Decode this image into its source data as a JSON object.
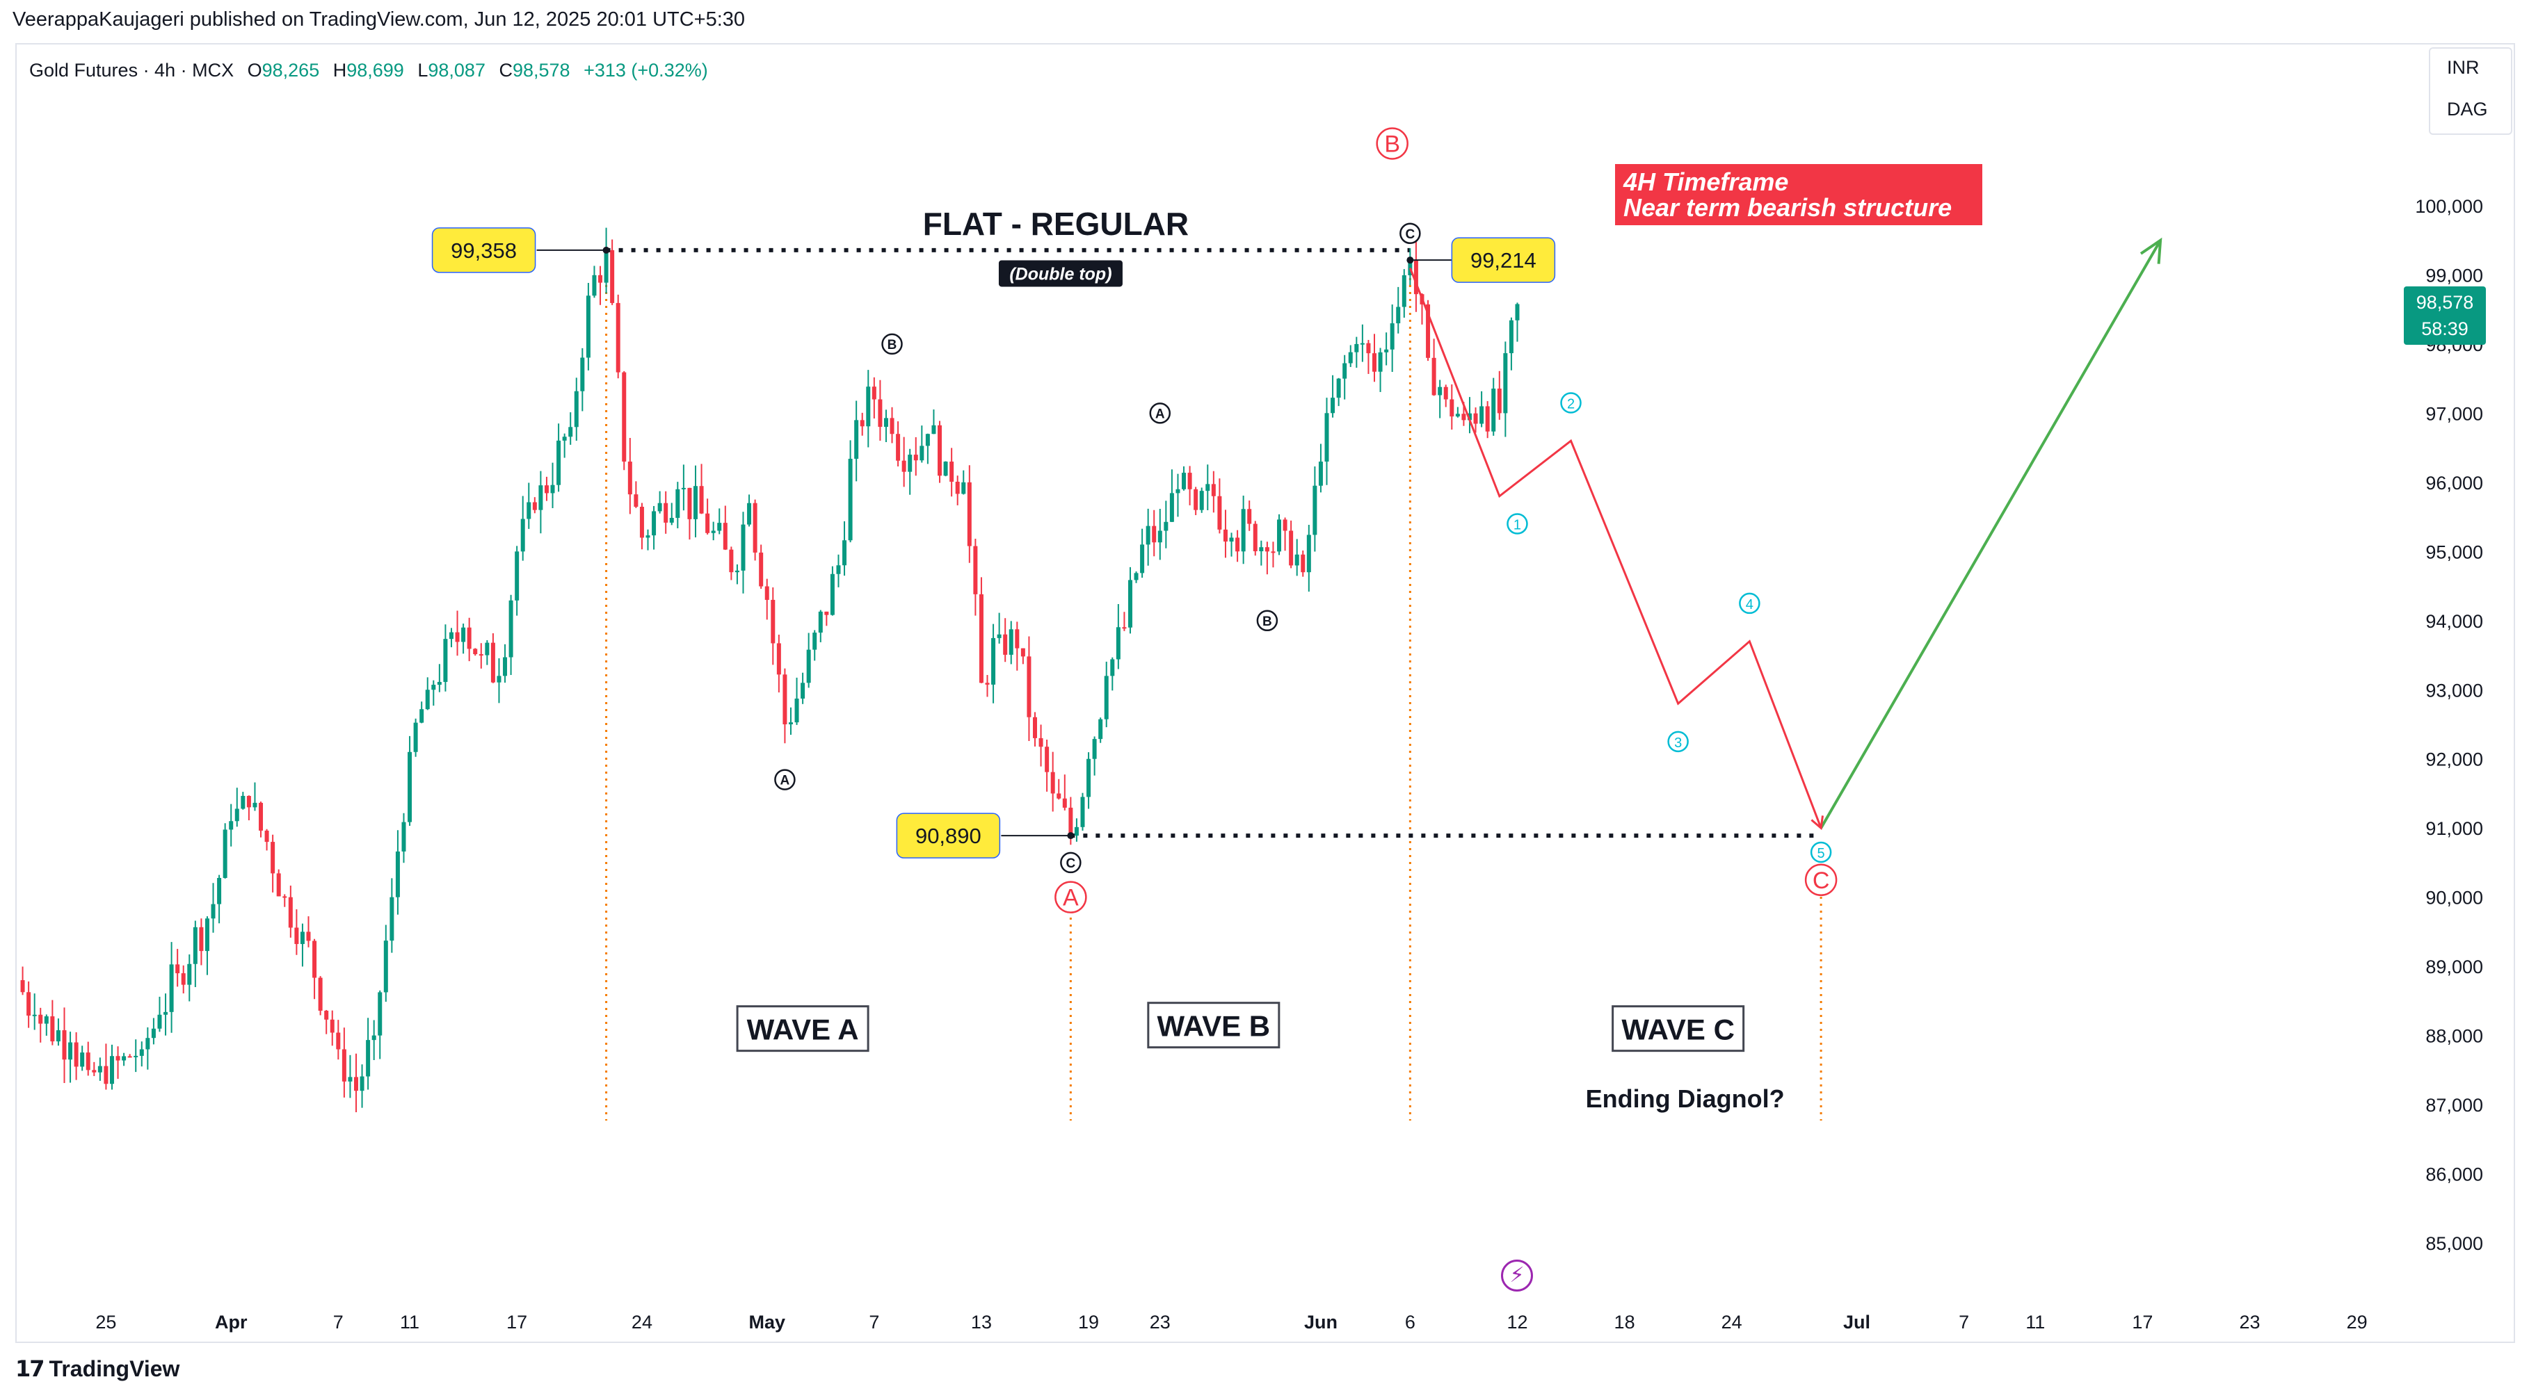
{
  "publisher": "VeerappaKaujageri published on TradingView.com, Jun 12, 2025 20:01 UTC+5:30",
  "legend": {
    "symbol": "Gold Futures · 4h · MCX",
    "open_label": "O",
    "open": "98,265",
    "high_label": "H",
    "high": "98,699",
    "low_label": "L",
    "low": "98,087",
    "close_label": "C",
    "close": "98,578",
    "change": "+313 (+0.32%)"
  },
  "currency_menu": [
    "INR",
    "DAG"
  ],
  "last_price": {
    "price": "98,578",
    "countdown": "58:39"
  },
  "footer_brand": "TradingView",
  "lightning_icon": "lightning-icon",
  "colors": {
    "up": "#089981",
    "down": "#f23645",
    "projection_down": "#f23645",
    "projection_up": "#4caf50",
    "wave_red": "#f23645",
    "sub_wave": "#00bcd4",
    "label_yellow": "#ffeb3b",
    "vline": "#f57c00"
  },
  "chart_data": {
    "type": "candlestick",
    "interval": "4h",
    "y_axis": {
      "min": 84500,
      "max": 101700,
      "ticks": [
        85000,
        86000,
        87000,
        88000,
        89000,
        90000,
        91000,
        92000,
        93000,
        94000,
        95000,
        96000,
        97000,
        98000,
        99000,
        100000
      ],
      "tick_labels": [
        "85,000",
        "86,000",
        "87,000",
        "88,000",
        "89,000",
        "90,000",
        "91,000",
        "92,000",
        "93,000",
        "94,000",
        "95,000",
        "96,000",
        "97,000",
        "98,000",
        "99,000",
        "100,000"
      ]
    },
    "x_axis": {
      "start_date": "2025-03-20",
      "end_date": "2025-07-31",
      "ticks": [
        {
          "date": "2025-03-25",
          "label": "25",
          "bold": false
        },
        {
          "date": "2025-04-01",
          "label": "Apr",
          "bold": true
        },
        {
          "date": "2025-04-07",
          "label": "7",
          "bold": false
        },
        {
          "date": "2025-04-11",
          "label": "11",
          "bold": false
        },
        {
          "date": "2025-04-17",
          "label": "17",
          "bold": false
        },
        {
          "date": "2025-04-24",
          "label": "24",
          "bold": false
        },
        {
          "date": "2025-05-01",
          "label": "May",
          "bold": true
        },
        {
          "date": "2025-05-07",
          "label": "7",
          "bold": false
        },
        {
          "date": "2025-05-13",
          "label": "13",
          "bold": false
        },
        {
          "date": "2025-05-19",
          "label": "19",
          "bold": false
        },
        {
          "date": "2025-05-23",
          "label": "23",
          "bold": false
        },
        {
          "date": "2025-06-01",
          "label": "Jun",
          "bold": true
        },
        {
          "date": "2025-06-06",
          "label": "6",
          "bold": false
        },
        {
          "date": "2025-06-12",
          "label": "12",
          "bold": false
        },
        {
          "date": "2025-06-18",
          "label": "18",
          "bold": false
        },
        {
          "date": "2025-06-24",
          "label": "24",
          "bold": false
        },
        {
          "date": "2025-07-01",
          "label": "Jul",
          "bold": true
        },
        {
          "date": "2025-07-07",
          "label": "7",
          "bold": false
        },
        {
          "date": "2025-07-11",
          "label": "11",
          "bold": false
        },
        {
          "date": "2025-07-17",
          "label": "17",
          "bold": false
        },
        {
          "date": "2025-07-23",
          "label": "23",
          "bold": false
        },
        {
          "date": "2025-07-29",
          "label": "29",
          "bold": false
        }
      ]
    },
    "price_path": [
      [
        "2025-03-20",
        88800
      ],
      [
        "2025-03-21",
        88300
      ],
      [
        "2025-03-23",
        87900
      ],
      [
        "2025-03-24",
        87500
      ],
      [
        "2025-03-25",
        87300
      ],
      [
        "2025-03-26",
        87700
      ],
      [
        "2025-03-27",
        87800
      ],
      [
        "2025-03-28",
        88300
      ],
      [
        "2025-03-29",
        88900
      ],
      [
        "2025-03-31",
        89900
      ],
      [
        "2025-04-01",
        91100
      ],
      [
        "2025-04-02",
        91300
      ],
      [
        "2025-04-03",
        90800
      ],
      [
        "2025-04-04",
        90000
      ],
      [
        "2025-04-05",
        89500
      ],
      [
        "2025-04-07",
        87800
      ],
      [
        "2025-04-08",
        87200
      ],
      [
        "2025-04-09",
        88000
      ],
      [
        "2025-04-10",
        90000
      ],
      [
        "2025-04-11",
        92100
      ],
      [
        "2025-04-12",
        93000
      ],
      [
        "2025-04-14",
        93900
      ],
      [
        "2025-04-15",
        93500
      ],
      [
        "2025-04-16",
        93200
      ],
      [
        "2025-04-17",
        95000
      ],
      [
        "2025-04-18",
        95600
      ],
      [
        "2025-04-20",
        96800
      ],
      [
        "2025-04-21",
        98700
      ],
      [
        "2025-04-22",
        99358
      ],
      [
        "2025-04-23",
        96300
      ],
      [
        "2025-04-24",
        95200
      ],
      [
        "2025-04-25",
        95700
      ],
      [
        "2025-04-26",
        95900
      ],
      [
        "2025-04-28",
        95300
      ],
      [
        "2025-04-29",
        94700
      ],
      [
        "2025-04-30",
        95700
      ],
      [
        "2025-05-01",
        94300
      ],
      [
        "2025-05-02",
        92500
      ],
      [
        "2025-05-03",
        93100
      ],
      [
        "2025-05-05",
        94800
      ],
      [
        "2025-05-06",
        96900
      ],
      [
        "2025-05-07",
        97200
      ],
      [
        "2025-05-08",
        96700
      ],
      [
        "2025-05-09",
        96400
      ],
      [
        "2025-05-10",
        96700
      ],
      [
        "2025-05-11",
        96300
      ],
      [
        "2025-05-12",
        96000
      ],
      [
        "2025-05-13",
        93100
      ],
      [
        "2025-05-14",
        93800
      ],
      [
        "2025-05-15",
        93600
      ],
      [
        "2025-05-16",
        92300
      ],
      [
        "2025-05-17",
        91500
      ],
      [
        "2025-05-18",
        90890
      ],
      [
        "2025-05-19",
        92000
      ],
      [
        "2025-05-20",
        93200
      ],
      [
        "2025-05-21",
        93900
      ],
      [
        "2025-05-22",
        95100
      ],
      [
        "2025-05-23",
        95300
      ],
      [
        "2025-05-24",
        95900
      ],
      [
        "2025-05-25",
        95600
      ],
      [
        "2025-05-26",
        95800
      ],
      [
        "2025-05-27",
        95200
      ],
      [
        "2025-05-28",
        95400
      ],
      [
        "2025-05-29",
        95000
      ],
      [
        "2025-05-30",
        95300
      ],
      [
        "2025-05-31",
        94700
      ],
      [
        "2025-06-01",
        96300
      ],
      [
        "2025-06-02",
        97500
      ],
      [
        "2025-06-03",
        98000
      ],
      [
        "2025-06-04",
        97600
      ],
      [
        "2025-06-05",
        98300
      ],
      [
        "2025-06-06",
        99214
      ],
      [
        "2025-06-07",
        97800
      ],
      [
        "2025-06-08",
        97200
      ],
      [
        "2025-06-09",
        96900
      ],
      [
        "2025-06-10",
        97100
      ],
      [
        "2025-06-11",
        97000
      ],
      [
        "2025-06-12",
        98578
      ]
    ],
    "wave_labels": [
      {
        "date": "2025-04-22",
        "price": 99358,
        "label": "99,358",
        "type": "price-box"
      },
      {
        "date": "2025-06-06",
        "price": 99214,
        "label": "99,214",
        "type": "price-box"
      },
      {
        "date": "2025-05-18",
        "price": 90890,
        "label": "90,890",
        "type": "price-box"
      },
      {
        "date": "2025-05-02",
        "price": 91700,
        "label": "A",
        "type": "minor"
      },
      {
        "date": "2025-05-08",
        "price": 98000,
        "label": "B",
        "type": "minor"
      },
      {
        "date": "2025-05-18",
        "price": 90500,
        "label": "C",
        "type": "minor"
      },
      {
        "date": "2025-05-23",
        "price": 97000,
        "label": "A",
        "type": "minor"
      },
      {
        "date": "2025-05-29",
        "price": 94000,
        "label": "B",
        "type": "minor"
      },
      {
        "date": "2025-06-06",
        "price": 99600,
        "label": "C",
        "type": "minor"
      },
      {
        "date": "2025-05-18",
        "price": 90000,
        "label": "A",
        "type": "major"
      },
      {
        "date": "2025-06-05",
        "price": 100900,
        "label": "B",
        "type": "major"
      },
      {
        "date": "2025-06-29",
        "price": 90250,
        "label": "C",
        "type": "major"
      }
    ],
    "projection": {
      "down": [
        [
          "2025-06-06",
          99100
        ],
        [
          "2025-06-11",
          95800
        ],
        [
          "2025-06-15",
          96600
        ],
        [
          "2025-06-21",
          92800
        ],
        [
          "2025-06-25",
          93700
        ],
        [
          "2025-06-29",
          91000
        ]
      ],
      "up": [
        [
          "2025-06-29",
          91000
        ],
        [
          "2025-07-18",
          99500
        ]
      ],
      "sub_waves": [
        {
          "date": "2025-06-12",
          "price": 95400,
          "label": "1"
        },
        {
          "date": "2025-06-15",
          "price": 97150,
          "label": "2"
        },
        {
          "date": "2025-06-21",
          "price": 92250,
          "label": "3"
        },
        {
          "date": "2025-06-25",
          "price": 94250,
          "label": "4"
        },
        {
          "date": "2025-06-29",
          "price": 90650,
          "label": "5"
        }
      ]
    },
    "levels": [
      {
        "price": 99358,
        "from": "2025-04-22",
        "to": "2025-06-06"
      },
      {
        "price": 90890,
        "from": "2025-05-18",
        "to": "2025-06-29"
      }
    ],
    "vlines": [
      "2025-04-22",
      "2025-05-18",
      "2025-06-06",
      "2025-06-29"
    ],
    "annotations": [
      {
        "date": "2025-05-13",
        "price": 99700,
        "text": "FLAT - REGULAR",
        "style": "title"
      },
      {
        "date": "2025-05-13",
        "price": 99010,
        "text": "(Double top)",
        "style": "tag"
      },
      {
        "date": "2025-05-03",
        "price": 88100,
        "text": "WAVE A",
        "style": "box"
      },
      {
        "date": "2025-05-26",
        "price": 88150,
        "text": "WAVE B",
        "style": "box"
      },
      {
        "date": "2025-06-21",
        "price": 88100,
        "text": "WAVE C",
        "style": "box"
      },
      {
        "date": "2025-06-21",
        "price": 87100,
        "text": "Ending Diagnol?",
        "style": "bold"
      },
      {
        "date": "2025-06-21",
        "price": 100380,
        "text": "4H Timeframe",
        "style": "red-box"
      },
      {
        "date": "2025-06-21",
        "price": 100000,
        "text": "Near term bearish structure",
        "style": "red-box"
      }
    ]
  }
}
